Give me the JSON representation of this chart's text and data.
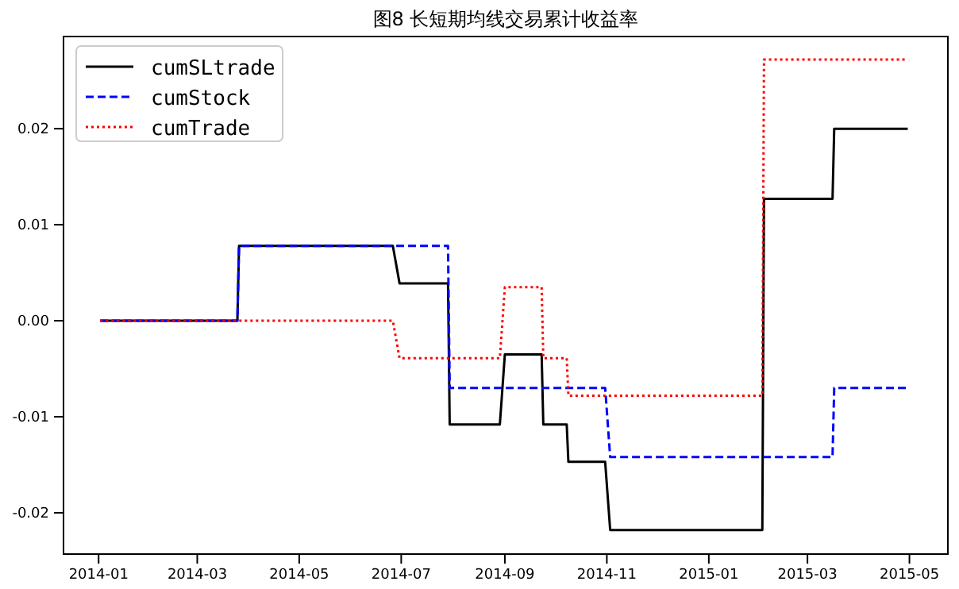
{
  "chart_data": {
    "type": "line",
    "title": "图8 长短期均线交易累计收益率",
    "xlim": [
      "2013-12-11",
      "2015-05-24"
    ],
    "ylim": [
      -0.0243,
      0.0296
    ],
    "xticks": [
      {
        "value": "2014-01",
        "label": "2014-01"
      },
      {
        "value": "2014-03",
        "label": "2014-03"
      },
      {
        "value": "2014-05",
        "label": "2014-05"
      },
      {
        "value": "2014-07",
        "label": "2014-07"
      },
      {
        "value": "2014-09",
        "label": "2014-09"
      },
      {
        "value": "2014-11",
        "label": "2014-11"
      },
      {
        "value": "2015-01",
        "label": "2015-01"
      },
      {
        "value": "2015-03",
        "label": "2015-03"
      },
      {
        "value": "2015-05",
        "label": "2015-05"
      }
    ],
    "yticks": [
      {
        "value": -0.02,
        "label": "-0.02"
      },
      {
        "value": -0.01,
        "label": "-0.01"
      },
      {
        "value": 0,
        "label": "0.00"
      },
      {
        "value": 0.01,
        "label": "0.01"
      },
      {
        "value": 0.02,
        "label": "0.02"
      }
    ],
    "legend": "top left",
    "grid": false,
    "series": [
      {
        "name": "cumSLtrade",
        "color": "#000000",
        "line_style": "solid",
        "x": [
          "2014-01-02",
          "2014-03-25",
          "2014-03-26",
          "2014-06-26",
          "2014-06-30",
          "2014-07-29",
          "2014-07-30",
          "2014-08-29",
          "2014-09-01",
          "2014-09-23",
          "2014-09-24",
          "2014-10-08",
          "2014-10-09",
          "2014-10-31",
          "2014-11-03",
          "2015-02-02",
          "2015-02-03",
          "2015-03-16",
          "2015-03-17",
          "2015-04-30"
        ],
        "values": [
          0,
          0,
          0.0078,
          0.0078,
          0.0039,
          0.0039,
          -0.0108,
          -0.0108,
          -0.0035,
          -0.0035,
          -0.0108,
          -0.0108,
          -0.0147,
          -0.0147,
          -0.0218,
          -0.0218,
          0.0127,
          0.0127,
          0.02,
          0.02
        ]
      },
      {
        "name": "cumStock",
        "color": "#0000ff",
        "line_style": "dashed",
        "x": [
          "2014-01-02",
          "2014-03-25",
          "2014-03-26",
          "2014-07-29",
          "2014-07-30",
          "2014-10-31",
          "2014-11-03",
          "2015-03-16",
          "2015-03-17",
          "2015-04-30"
        ],
        "values": [
          0,
          0,
          0.0078,
          0.0078,
          -0.007,
          -0.007,
          -0.0142,
          -0.0142,
          -0.007,
          -0.007
        ]
      },
      {
        "name": "cumTrade",
        "color": "#ff0000",
        "line_style": "dotted",
        "x": [
          "2014-01-02",
          "2014-06-26",
          "2014-06-30",
          "2014-08-29",
          "2014-09-01",
          "2014-09-23",
          "2014-09-24",
          "2014-10-08",
          "2014-10-09",
          "2015-02-02",
          "2015-02-03",
          "2015-04-30"
        ],
        "values": [
          0,
          0,
          -0.0039,
          -0.0039,
          0.0035,
          0.0035,
          -0.0039,
          -0.0039,
          -0.0078,
          -0.0078,
          0.0272,
          0.0272
        ]
      }
    ]
  }
}
